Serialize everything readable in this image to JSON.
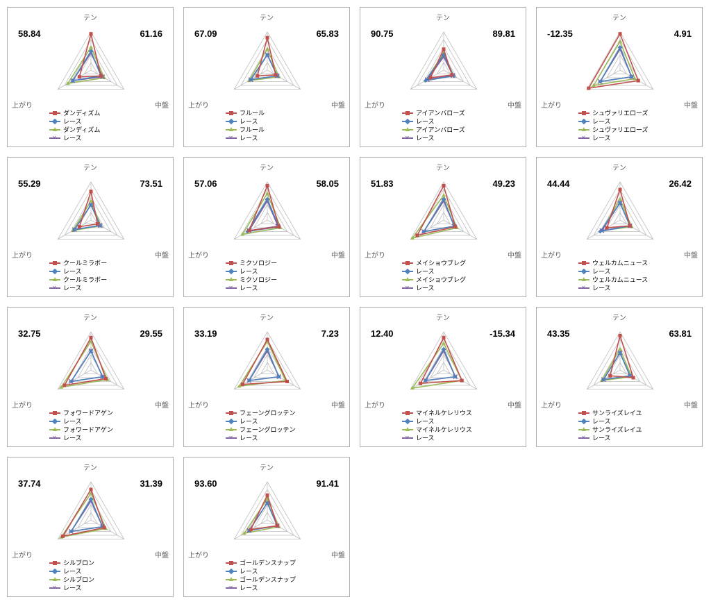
{
  "axis_labels": {
    "top": "テン",
    "right": "中盤",
    "left": "上がり"
  },
  "series_colors": {
    "s1": "#c0504d",
    "s2": "#4f81bd",
    "s3": "#9bbb59",
    "s4": "#8064a2"
  },
  "markers": {
    "s1": "square",
    "s2": "diamond",
    "s3": "triangle",
    "s4": "cross"
  },
  "grid_color": "#bfbfbf",
  "text_color": "#595959",
  "rings": 5,
  "charts": [
    {
      "left_val": "58.84",
      "right_val": "61.16",
      "legend": [
        "ダンディズム",
        "レース",
        "ダンディズム",
        "レース"
      ],
      "series": {
        "s1": [
          0.95,
          0.3,
          0.35
        ],
        "s2": [
          0.5,
          0.3,
          0.55
        ],
        "s3": [
          0.6,
          0.4,
          0.7
        ],
        "s4": [
          0.45,
          0.35,
          0.55
        ]
      }
    },
    {
      "left_val": "67.09",
      "right_val": "65.83",
      "legend": [
        "フルール",
        "レース",
        "フルール",
        "レース"
      ],
      "series": {
        "s1": [
          0.85,
          0.25,
          0.3
        ],
        "s2": [
          0.4,
          0.3,
          0.5
        ],
        "s3": [
          0.55,
          0.35,
          0.55
        ],
        "s4": [
          0.4,
          0.3,
          0.5
        ]
      }
    },
    {
      "left_val": "90.75",
      "right_val": "89.81",
      "legend": [
        "アイアンバローズ",
        "レース",
        "アイアンバローズ",
        "レース"
      ],
      "series": {
        "s1": [
          0.55,
          0.25,
          0.4
        ],
        "s2": [
          0.4,
          0.3,
          0.55
        ],
        "s3": [
          0.45,
          0.3,
          0.55
        ],
        "s4": [
          0.35,
          0.28,
          0.5
        ]
      }
    },
    {
      "left_val": "-12.35",
      "right_val": "4.91",
      "legend": [
        "シュヴァリエローズ",
        "レース",
        "シュヴァリエローズ",
        "レース"
      ],
      "series": {
        "s1": [
          0.95,
          0.55,
          0.95
        ],
        "s2": [
          0.6,
          0.35,
          0.6
        ],
        "s3": [
          0.75,
          0.45,
          0.8
        ],
        "s4": [
          0.55,
          0.35,
          0.6
        ]
      }
    },
    {
      "left_val": "55.29",
      "right_val": "73.51",
      "legend": [
        "クールミラボー",
        "レース",
        "クールミラボー",
        "レース"
      ],
      "series": {
        "s1": [
          0.75,
          0.2,
          0.35
        ],
        "s2": [
          0.4,
          0.28,
          0.5
        ],
        "s3": [
          0.5,
          0.3,
          0.55
        ],
        "s4": [
          0.4,
          0.28,
          0.5
        ]
      }
    },
    {
      "left_val": "57.06",
      "right_val": "58.05",
      "legend": [
        "ミクソロジー",
        "レース",
        "ミクソロジー",
        "レース"
      ],
      "series": {
        "s1": [
          0.9,
          0.35,
          0.55
        ],
        "s2": [
          0.55,
          0.35,
          0.6
        ],
        "s3": [
          0.7,
          0.4,
          0.75
        ],
        "s4": [
          0.5,
          0.32,
          0.55
        ]
      }
    },
    {
      "left_val": "51.83",
      "right_val": "49.23",
      "legend": [
        "メイショウブレグ",
        "レース",
        "メイショウブレグ",
        "レース"
      ],
      "series": {
        "s1": [
          0.9,
          0.35,
          0.8
        ],
        "s2": [
          0.55,
          0.32,
          0.6
        ],
        "s3": [
          0.65,
          0.4,
          0.95
        ],
        "s4": [
          0.5,
          0.32,
          0.6
        ]
      }
    },
    {
      "left_val": "44.44",
      "right_val": "26.42",
      "legend": [
        "ウェルカムニュース",
        "レース",
        "ウェルカムニュース",
        "レース"
      ],
      "series": {
        "s1": [
          0.8,
          0.3,
          0.4
        ],
        "s2": [
          0.45,
          0.3,
          0.6
        ],
        "s3": [
          0.55,
          0.35,
          0.55
        ],
        "s4": [
          0.45,
          0.3,
          0.55
        ]
      }
    },
    {
      "left_val": "32.75",
      "right_val": "29.55",
      "legend": [
        "フォワードアゲン",
        "レース",
        "フォワードアゲン",
        "レース"
      ],
      "series": {
        "s1": [
          0.85,
          0.45,
          0.8
        ],
        "s2": [
          0.5,
          0.35,
          0.6
        ],
        "s3": [
          0.75,
          0.5,
          0.9
        ],
        "s4": [
          0.5,
          0.35,
          0.6
        ]
      }
    },
    {
      "left_val": "33.19",
      "right_val": "7.23",
      "legend": [
        "フェーングロッテン",
        "レース",
        "フェーングロッテン",
        "レース"
      ],
      "series": {
        "s1": [
          0.8,
          0.6,
          0.75
        ],
        "s2": [
          0.55,
          0.35,
          0.55
        ],
        "s3": [
          0.75,
          0.55,
          0.85
        ],
        "s4": [
          0.5,
          0.35,
          0.55
        ]
      }
    },
    {
      "left_val": "12.40",
      "right_val": "-15.34",
      "legend": [
        "マイネルケレリウス",
        "レース",
        "マイネルケレリウス",
        "レース"
      ],
      "series": {
        "s1": [
          0.85,
          0.55,
          0.7
        ],
        "s2": [
          0.55,
          0.35,
          0.55
        ],
        "s3": [
          0.7,
          0.55,
          0.95
        ],
        "s4": [
          0.5,
          0.35,
          0.55
        ]
      }
    },
    {
      "left_val": "43.35",
      "right_val": "63.81",
      "legend": [
        "サンライズレイユ",
        "レース",
        "サンライズレイユ",
        "レース"
      ],
      "series": {
        "s1": [
          0.9,
          0.4,
          0.3
        ],
        "s2": [
          0.45,
          0.3,
          0.5
        ],
        "s3": [
          0.55,
          0.35,
          0.55
        ],
        "s4": [
          0.45,
          0.3,
          0.5
        ]
      }
    },
    {
      "left_val": "37.74",
      "right_val": "31.39",
      "legend": [
        "シルブロン",
        "レース",
        "シルブロン",
        "レース"
      ],
      "series": {
        "s1": [
          0.8,
          0.4,
          0.85
        ],
        "s2": [
          0.55,
          0.35,
          0.6
        ],
        "s3": [
          0.7,
          0.45,
          0.9
        ],
        "s4": [
          0.5,
          0.35,
          0.6
        ]
      }
    },
    {
      "left_val": "93.60",
      "right_val": "91.41",
      "legend": [
        "ゴールデンスナップ",
        "レース",
        "ゴールデンスナップ",
        "レース"
      ],
      "series": {
        "s1": [
          0.65,
          0.3,
          0.5
        ],
        "s2": [
          0.45,
          0.3,
          0.55
        ],
        "s3": [
          0.55,
          0.35,
          0.7
        ],
        "s4": [
          0.45,
          0.3,
          0.55
        ]
      }
    }
  ]
}
